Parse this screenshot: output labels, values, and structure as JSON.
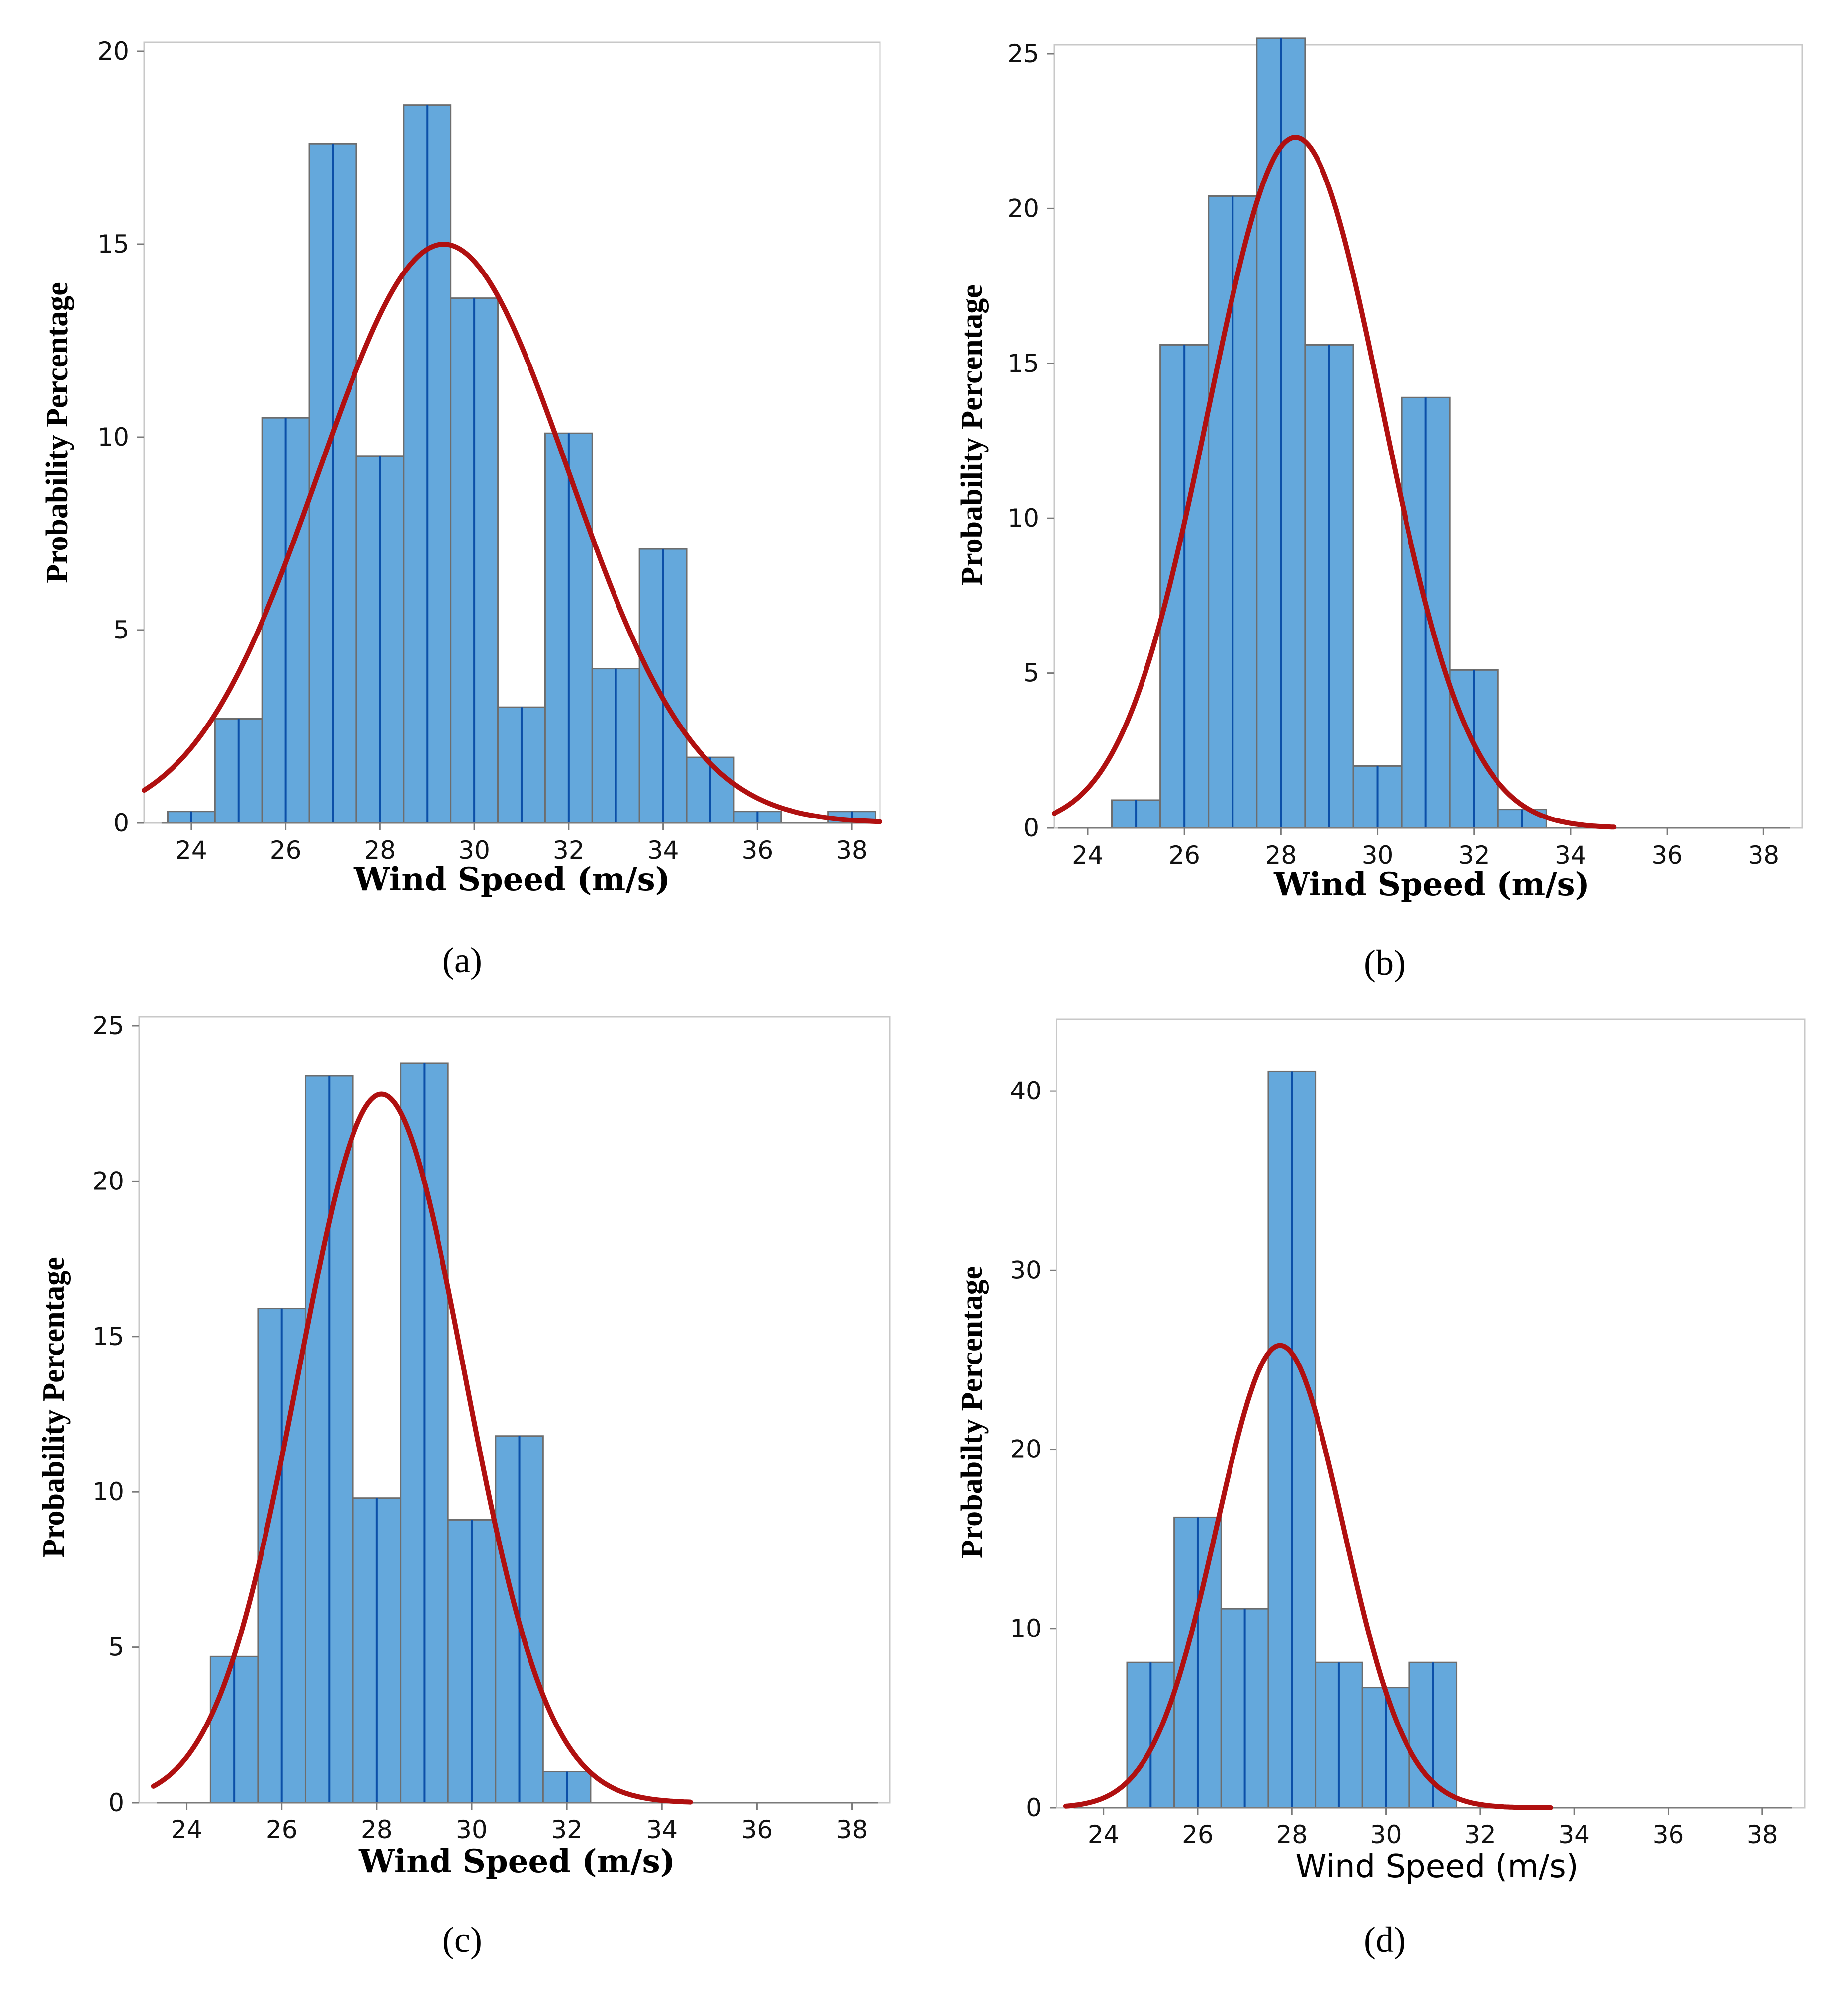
{
  "chart_data": [
    {
      "id": "a",
      "caption": "(a)",
      "type": "bar",
      "title": "",
      "xlabel": "Wind Speed (m/s)",
      "ylabel": "Probability Percentage",
      "bin_width": 1,
      "bin_centers": [
        24,
        25,
        26,
        27,
        28,
        29,
        30,
        31,
        32,
        33,
        34,
        35,
        36,
        37,
        38
      ],
      "values": [
        0.3,
        2.7,
        10.5,
        17.6,
        9.5,
        18.6,
        13.6,
        3.0,
        10.1,
        4.0,
        7.1,
        1.7,
        0.3,
        0.0,
        0.3
      ],
      "xlim": [
        23.0,
        38.6
      ],
      "ylim": [
        0,
        20
      ],
      "xticks": [
        24,
        26,
        28,
        30,
        32,
        34,
        36,
        38
      ],
      "yticks": [
        0,
        5,
        10,
        15,
        20
      ],
      "fit": {
        "type": "normal",
        "mean": 29.35,
        "peak": 15.0,
        "std": 2.65,
        "x_range": [
          23.0,
          38.6
        ]
      }
    },
    {
      "id": "b",
      "caption": "(b)",
      "type": "bar",
      "title": "",
      "xlabel": "Wind Speed (m/s)",
      "ylabel": "Probability Percentage",
      "bin_width": 1,
      "bin_centers": [
        25,
        26,
        27,
        28,
        29,
        30,
        31,
        32,
        33
      ],
      "values": [
        0.9,
        15.6,
        20.4,
        25.5,
        15.6,
        2.0,
        13.9,
        5.1,
        0.6
      ],
      "xlim": [
        23.3,
        38.8
      ],
      "ylim": [
        0,
        25
      ],
      "xticks": [
        24,
        26,
        28,
        30,
        32,
        34,
        36,
        38
      ],
      "yticks": [
        0,
        5,
        10,
        15,
        20,
        25
      ],
      "fit": {
        "type": "normal",
        "mean": 28.3,
        "peak": 22.3,
        "std": 1.8,
        "x_range": [
          23.3,
          34.9
        ]
      }
    },
    {
      "id": "c",
      "caption": "(c)",
      "type": "bar",
      "title": "",
      "xlabel": "Wind Speed (m/s)",
      "ylabel": "Probability Percentage",
      "bin_width": 1,
      "bin_centers": [
        25,
        26,
        27,
        28,
        29,
        30,
        31,
        32
      ],
      "values": [
        4.7,
        15.9,
        23.4,
        9.8,
        23.8,
        9.1,
        11.8,
        1.0
      ],
      "xlim": [
        23.0,
        38.8
      ],
      "ylim": [
        0,
        25
      ],
      "xticks": [
        24,
        26,
        28,
        30,
        32,
        34,
        36,
        38
      ],
      "yticks": [
        0,
        5,
        10,
        15,
        20,
        25
      ],
      "fit": {
        "type": "normal",
        "mean": 28.1,
        "peak": 22.8,
        "std": 1.75,
        "x_range": [
          23.3,
          34.6
        ]
      }
    },
    {
      "id": "d",
      "caption": "(d)",
      "type": "bar",
      "title": "",
      "xlabel": "Wind Speed (m/s)",
      "ylabel": "Probabilty Percentage",
      "bin_width": 1,
      "bin_centers": [
        25,
        26,
        27,
        28,
        29,
        30,
        31
      ],
      "values": [
        8.1,
        16.2,
        11.1,
        41.1,
        8.1,
        6.7,
        8.1
      ],
      "xlim": [
        23.0,
        38.9
      ],
      "ylim": [
        0,
        43.5
      ],
      "xticks": [
        24,
        26,
        28,
        30,
        32,
        34,
        36,
        38
      ],
      "yticks": [
        0,
        10,
        20,
        30,
        40
      ],
      "fit": {
        "type": "normal",
        "mean": 27.75,
        "peak": 25.8,
        "std": 1.35,
        "x_range": [
          23.2,
          33.5
        ]
      }
    }
  ]
}
